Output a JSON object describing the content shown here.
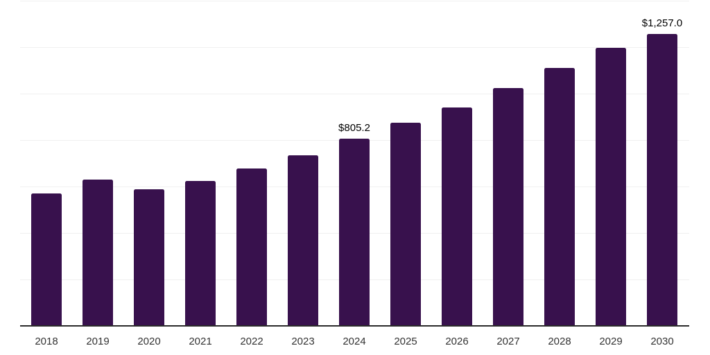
{
  "chart_data": {
    "type": "bar",
    "title": "",
    "xlabel": "",
    "ylabel": "",
    "categories": [
      "2018",
      "2019",
      "2020",
      "2021",
      "2022",
      "2023",
      "2024",
      "2025",
      "2026",
      "2027",
      "2028",
      "2029",
      "2030"
    ],
    "values": [
      570,
      630,
      588,
      625,
      678,
      734,
      805.2,
      875,
      941,
      1023,
      1110,
      1197,
      1257
    ],
    "data_labels": [
      "",
      "",
      "",
      "",
      "",
      "",
      "$805.2",
      "",
      "",
      "",
      "",
      "",
      "$1,257.0"
    ],
    "ylim": [
      0,
      1400
    ],
    "gridline_step": 200,
    "grid": true,
    "legend_position": "none",
    "y_axis_tick_labels_visible": false,
    "colors": {
      "bar": "#38114D",
      "gridline": "#F0F0F0",
      "axis": "#2B2B2B",
      "tick_label": "#333333",
      "data_label": "#000000",
      "background": "#FFFFFF"
    }
  }
}
